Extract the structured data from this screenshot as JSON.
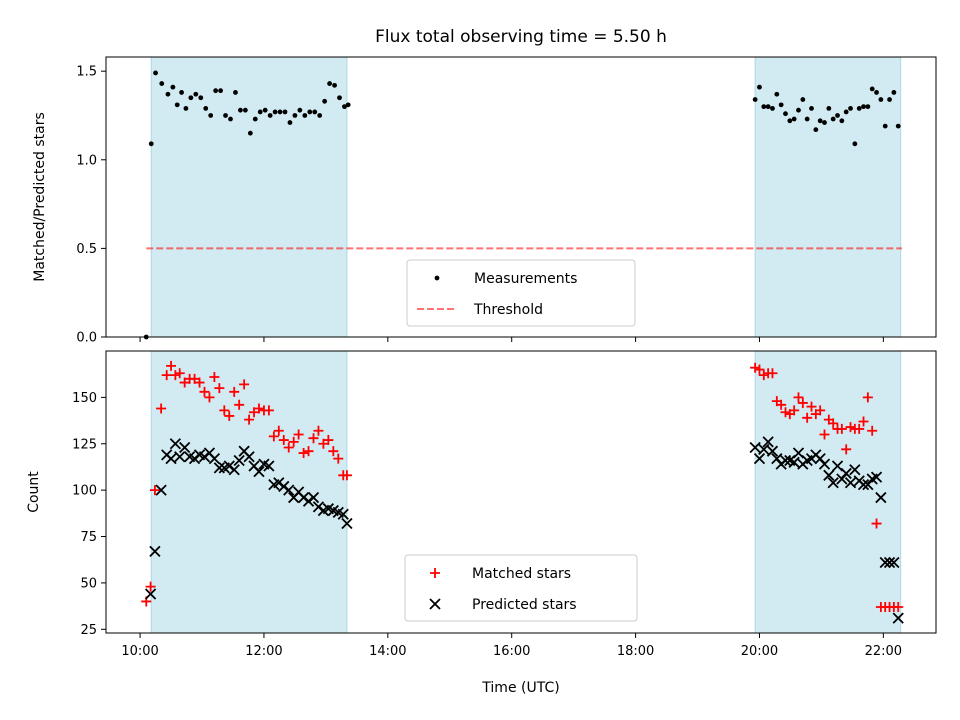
{
  "figure": {
    "title": "Flux total observing time = 5.50 h"
  },
  "colors": {
    "shade": "#add8e6",
    "measurement": "#000000",
    "threshold": "#ff0000",
    "matched": "#ff0000",
    "predicted": "#000000"
  },
  "chart_data": [
    {
      "type": "scatter",
      "ylabel": "Matched/Predicted stars",
      "xlim": [
        9.45,
        22.85
      ],
      "ylim": [
        0,
        1.58
      ],
      "yticks": [
        0.0,
        0.5,
        1.0,
        1.5
      ],
      "ytick_labels": [
        "0.0",
        "0.5",
        "1.0",
        "1.5"
      ],
      "shaded_intervals": [
        [
          10.18,
          13.34
        ],
        [
          19.93,
          22.28
        ]
      ],
      "threshold": {
        "name": "Threshold",
        "value": 0.5,
        "x_range": [
          10.1,
          22.3
        ],
        "style": "dashed"
      },
      "legend": {
        "loc": "lower center",
        "entries": [
          "Measurements",
          "Threshold"
        ]
      },
      "series": [
        {
          "name": "Measurements",
          "marker": "dot",
          "x": [
            10.1,
            10.18,
            10.25,
            10.35,
            10.45,
            10.53,
            10.6,
            10.67,
            10.74,
            10.82,
            10.9,
            10.98,
            11.06,
            11.14,
            11.22,
            11.3,
            11.38,
            11.46,
            11.54,
            11.62,
            11.7,
            11.78,
            11.86,
            11.94,
            12.02,
            12.1,
            12.18,
            12.26,
            12.34,
            12.42,
            12.5,
            12.58,
            12.66,
            12.74,
            12.82,
            12.9,
            12.98,
            13.06,
            13.14,
            13.22,
            13.3,
            13.36,
            19.93,
            20.0,
            20.07,
            20.14,
            20.21,
            20.28,
            20.35,
            20.42,
            20.49,
            20.56,
            20.63,
            20.7,
            20.77,
            20.84,
            20.91,
            20.98,
            21.05,
            21.12,
            21.19,
            21.26,
            21.33,
            21.4,
            21.47,
            21.54,
            21.61,
            21.68,
            21.75,
            21.82,
            21.89,
            21.96,
            22.03,
            22.1,
            22.17,
            22.24
          ],
          "y": [
            0.0,
            1.09,
            1.49,
            1.43,
            1.37,
            1.41,
            1.31,
            1.38,
            1.29,
            1.35,
            1.37,
            1.35,
            1.29,
            1.25,
            1.39,
            1.39,
            1.25,
            1.23,
            1.38,
            1.28,
            1.28,
            1.15,
            1.23,
            1.27,
            1.28,
            1.25,
            1.27,
            1.27,
            1.27,
            1.21,
            1.25,
            1.28,
            1.25,
            1.27,
            1.27,
            1.25,
            1.33,
            1.43,
            1.42,
            1.35,
            1.3,
            1.31,
            1.34,
            1.41,
            1.3,
            1.3,
            1.29,
            1.37,
            1.31,
            1.26,
            1.22,
            1.23,
            1.28,
            1.34,
            1.23,
            1.29,
            1.17,
            1.22,
            1.21,
            1.29,
            1.23,
            1.25,
            1.22,
            1.27,
            1.29,
            1.09,
            1.29,
            1.3,
            1.3,
            1.4,
            1.38,
            1.34,
            1.19,
            1.34,
            1.38,
            1.19
          ]
        }
      ]
    },
    {
      "type": "scatter",
      "xlabel": "Time (UTC)",
      "ylabel": "Count",
      "xlim": [
        9.45,
        22.85
      ],
      "ylim": [
        23,
        175
      ],
      "xticks": [
        10,
        12,
        14,
        16,
        18,
        20,
        22
      ],
      "xtick_labels": [
        "10:00",
        "12:00",
        "14:00",
        "16:00",
        "18:00",
        "20:00",
        "22:00"
      ],
      "yticks": [
        25,
        50,
        75,
        100,
        125,
        150
      ],
      "ytick_labels": [
        "25",
        "50",
        "75",
        "100",
        "125",
        "150"
      ],
      "shaded_intervals": [
        [
          10.18,
          13.34
        ],
        [
          19.93,
          22.28
        ]
      ],
      "legend": {
        "loc": "lower center",
        "entries": [
          "Matched stars",
          "Predicted stars"
        ]
      },
      "series": [
        {
          "name": "Matched stars",
          "marker": "plus",
          "x": [
            10.1,
            10.17,
            10.24,
            10.34,
            10.43,
            10.5,
            10.57,
            10.64,
            10.72,
            10.8,
            10.88,
            10.96,
            11.04,
            11.12,
            11.2,
            11.28,
            11.36,
            11.44,
            11.52,
            11.6,
            11.68,
            11.76,
            11.84,
            11.92,
            12.0,
            12.08,
            12.16,
            12.24,
            12.32,
            12.4,
            12.48,
            12.56,
            12.64,
            12.72,
            12.8,
            12.88,
            12.96,
            13.04,
            13.12,
            13.2,
            13.28,
            13.34,
            19.93,
            20.0,
            20.07,
            20.14,
            20.21,
            20.28,
            20.35,
            20.42,
            20.49,
            20.56,
            20.63,
            20.7,
            20.77,
            20.84,
            20.91,
            20.98,
            21.05,
            21.12,
            21.19,
            21.26,
            21.33,
            21.4,
            21.47,
            21.54,
            21.61,
            21.68,
            21.75,
            21.82,
            21.89,
            21.96,
            22.03,
            22.1,
            22.17,
            22.24
          ],
          "y": [
            40,
            48,
            100,
            144,
            162,
            167,
            162,
            163,
            158,
            160,
            160,
            158,
            153,
            150,
            161,
            155,
            143,
            140,
            153,
            146,
            157,
            138,
            142,
            144,
            143,
            143,
            129,
            132,
            127,
            123,
            126,
            130,
            120,
            121,
            128,
            132,
            125,
            127,
            121,
            117,
            108,
            108,
            166,
            165,
            162,
            163,
            163,
            148,
            146,
            142,
            141,
            143,
            150,
            147,
            139,
            145,
            141,
            143,
            130,
            138,
            136,
            133,
            133,
            122,
            134,
            133,
            133,
            137,
            150,
            132,
            82,
            37,
            37,
            37,
            37,
            37
          ],
          "note_trailing": false
        },
        {
          "name": "Predicted stars",
          "marker": "cross",
          "x": [
            10.17,
            10.24,
            10.34,
            10.43,
            10.5,
            10.57,
            10.64,
            10.72,
            10.8,
            10.88,
            10.96,
            11.04,
            11.12,
            11.2,
            11.28,
            11.36,
            11.44,
            11.52,
            11.6,
            11.68,
            11.76,
            11.84,
            11.92,
            12.0,
            12.08,
            12.16,
            12.24,
            12.32,
            12.4,
            12.48,
            12.56,
            12.64,
            12.72,
            12.8,
            12.88,
            12.96,
            13.04,
            13.12,
            13.2,
            13.28,
            13.34,
            19.93,
            20.0,
            20.07,
            20.14,
            20.21,
            20.28,
            20.35,
            20.42,
            20.49,
            20.56,
            20.63,
            20.7,
            20.77,
            20.84,
            20.91,
            20.98,
            21.05,
            21.12,
            21.19,
            21.26,
            21.33,
            21.4,
            21.47,
            21.54,
            21.61,
            21.68,
            21.75,
            21.82,
            21.89,
            21.96,
            22.03,
            22.1,
            22.17,
            22.24
          ],
          "y": [
            44,
            67,
            100,
            119,
            117,
            125,
            118,
            123,
            118,
            117,
            119,
            118,
            120,
            117,
            112,
            112,
            113,
            111,
            116,
            121,
            118,
            113,
            110,
            114,
            113,
            103,
            104,
            102,
            100,
            96,
            99,
            96,
            94,
            96,
            91,
            89,
            90,
            89,
            88,
            87,
            82,
            123,
            117,
            122,
            126,
            121,
            117,
            114,
            116,
            116,
            115,
            120,
            114,
            116,
            117,
            119,
            117,
            114,
            108,
            104,
            113,
            106,
            109,
            104,
            111,
            105,
            103,
            103,
            106,
            107,
            96,
            61,
            61,
            61,
            31
          ]
        }
      ]
    }
  ]
}
